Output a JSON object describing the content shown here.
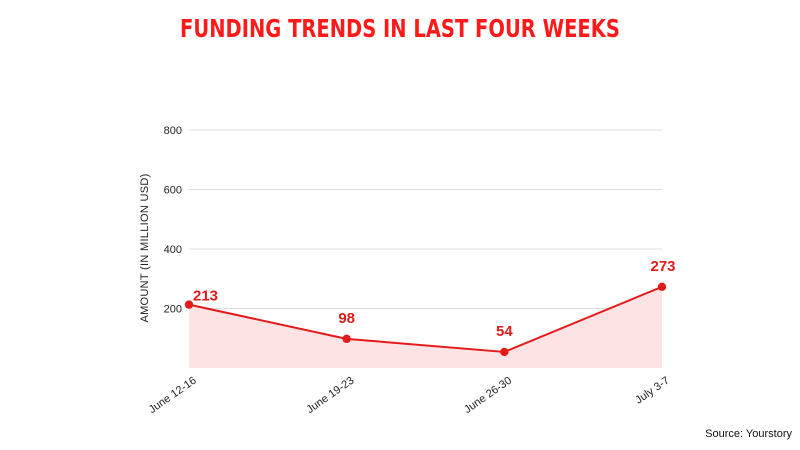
{
  "header": {
    "title": "FUNDING TRENDS IN LAST FOUR WEEKS"
  },
  "footer": {
    "source": "Source: Yourstory"
  },
  "colors": {
    "title": "#ff1a1a",
    "line": "#e31b1b",
    "fill": "#fde3e3",
    "grid": "#dddddd"
  },
  "chart_data": {
    "type": "area",
    "title": "FUNDING TRENDS IN LAST FOUR WEEKS",
    "xlabel": "",
    "ylabel": "AMOUNT (IN MILLION USD)",
    "categories": [
      "June 12-16",
      "June 19-23",
      "June 26-30",
      "July 3-7"
    ],
    "series": [
      {
        "values": [
          213,
          98,
          54,
          273
        ]
      }
    ],
    "data_labels": [
      "213",
      "98",
      "54",
      "273"
    ],
    "ylim": [
      0,
      800
    ],
    "yticks": [
      200,
      400,
      600,
      800
    ],
    "ytick_labels": [
      "200",
      "400",
      "600",
      "800"
    ],
    "grid": true,
    "legend": "none"
  }
}
